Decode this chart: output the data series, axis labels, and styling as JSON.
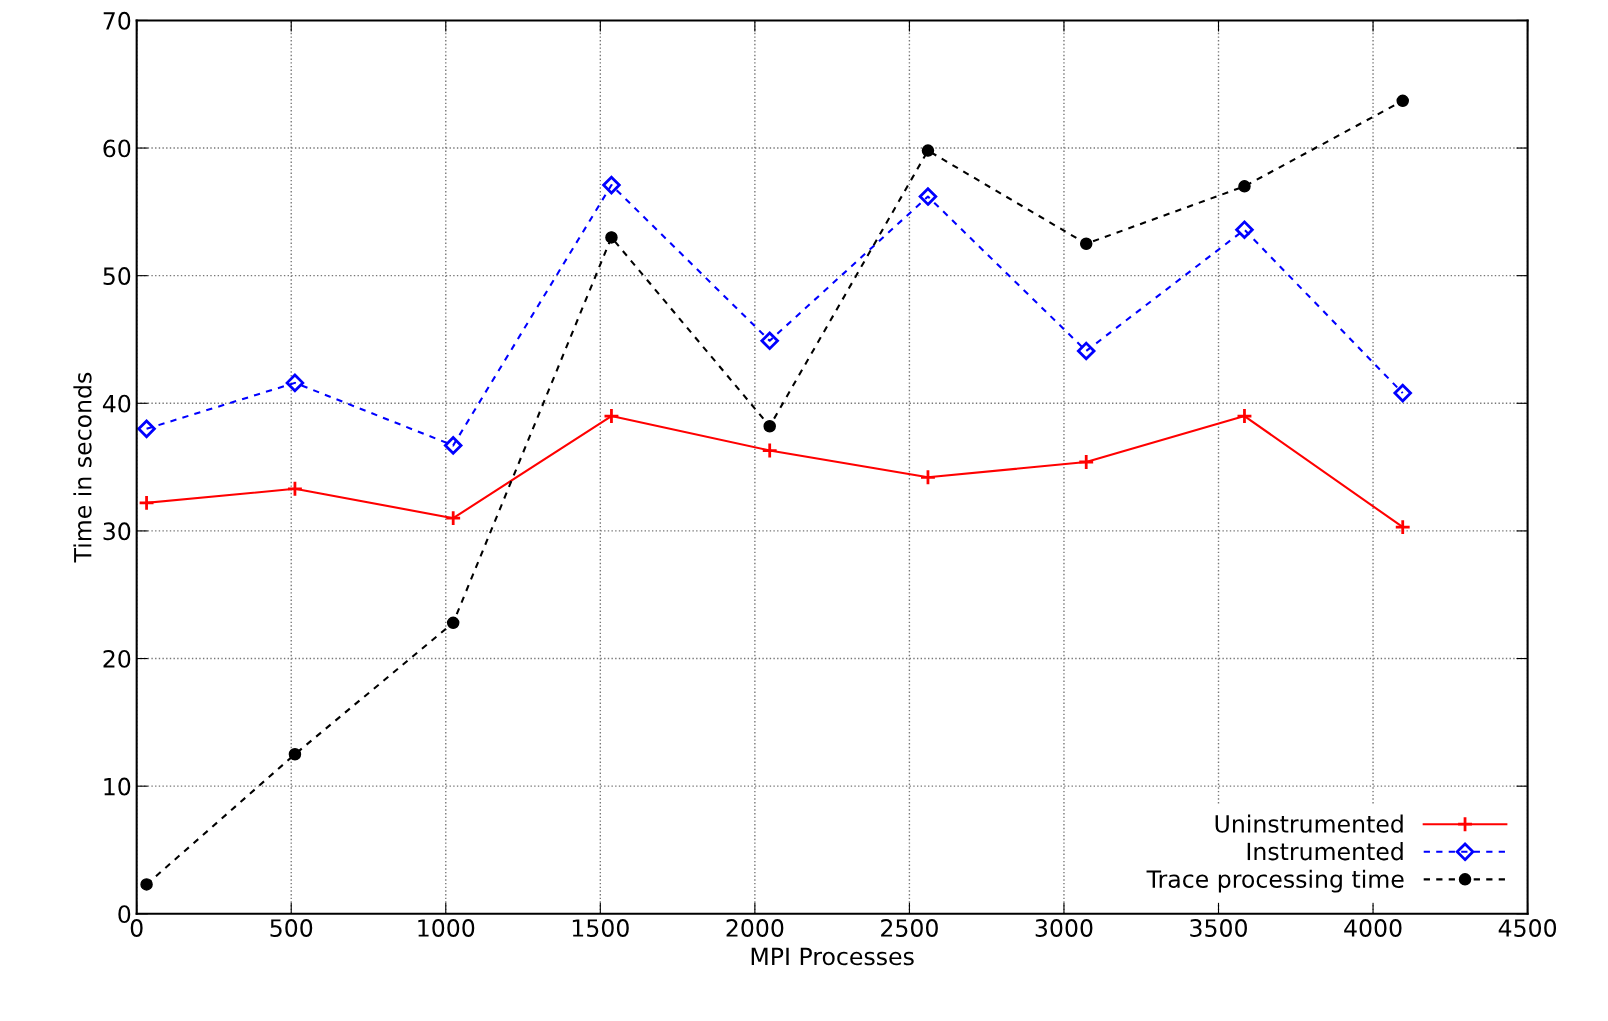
{
  "chart_data": {
    "type": "line",
    "xlabel": "MPI Processes",
    "ylabel": "Time in seconds",
    "xlim": [
      0,
      4500
    ],
    "xticks": [
      0,
      500,
      1000,
      1500,
      2000,
      2500,
      3000,
      3500,
      4000,
      4500
    ],
    "ylim": [
      0,
      70
    ],
    "yticks": [
      0,
      10,
      20,
      30,
      40,
      50,
      60,
      70
    ],
    "grid": true,
    "legend": "bottom right",
    "x": [
      32,
      512,
      1024,
      1536,
      2048,
      2560,
      3072,
      3584,
      4096
    ],
    "series": [
      {
        "name": "Uninstrumented",
        "color": "#ff0000",
        "marker": "cross",
        "line_style": "solid",
        "values": [
          32.2,
          33.3,
          31.0,
          39.0,
          36.3,
          34.2,
          35.4,
          39.0,
          30.3
        ]
      },
      {
        "name": "Instrumented",
        "color": "#0000ff",
        "marker": "diamond",
        "line_style": "dashed",
        "values": [
          38.0,
          41.6,
          36.7,
          57.1,
          44.9,
          56.2,
          44.1,
          53.6,
          40.8
        ]
      },
      {
        "name": "Trace processing time",
        "color": "#000000",
        "marker": "circle",
        "line_style": "dashed",
        "values": [
          2.3,
          12.5,
          22.8,
          53.0,
          38.2,
          59.8,
          52.5,
          57.0,
          63.7
        ]
      }
    ]
  }
}
